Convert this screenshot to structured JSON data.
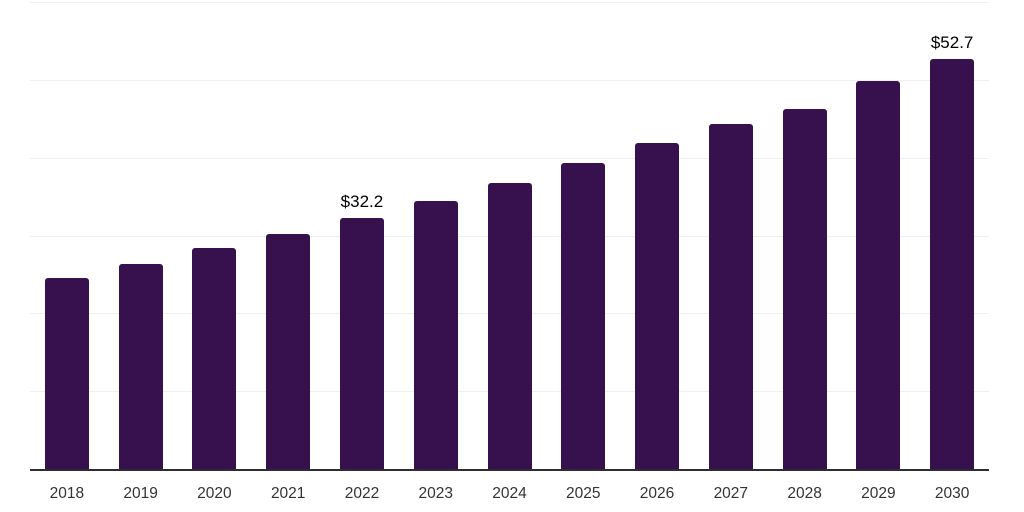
{
  "chart_data": {
    "type": "bar",
    "categories": [
      "2018",
      "2019",
      "2020",
      "2021",
      "2022",
      "2023",
      "2024",
      "2025",
      "2026",
      "2027",
      "2028",
      "2029",
      "2030"
    ],
    "values": [
      24.5,
      26.4,
      28.4,
      30.2,
      32.2,
      34.4,
      36.7,
      39.3,
      41.9,
      44.3,
      46.2,
      49.8,
      52.7
    ],
    "data_labels": [
      {
        "category": "2022",
        "text": "$32.2"
      },
      {
        "category": "2030",
        "text": "$52.7"
      }
    ],
    "title": "",
    "xlabel": "",
    "ylabel": "",
    "ylim": [
      0,
      60
    ],
    "grid": {
      "horizontal": true,
      "interval": 10,
      "y_tick_labels_visible": false
    },
    "legend": "none",
    "colors": {
      "bar": "#37114d",
      "gridline": "#f0f0f2",
      "axis_line": "#2e2e2e",
      "tick_label": "#333333",
      "data_label": "#000000",
      "background": "#ffffff"
    }
  }
}
